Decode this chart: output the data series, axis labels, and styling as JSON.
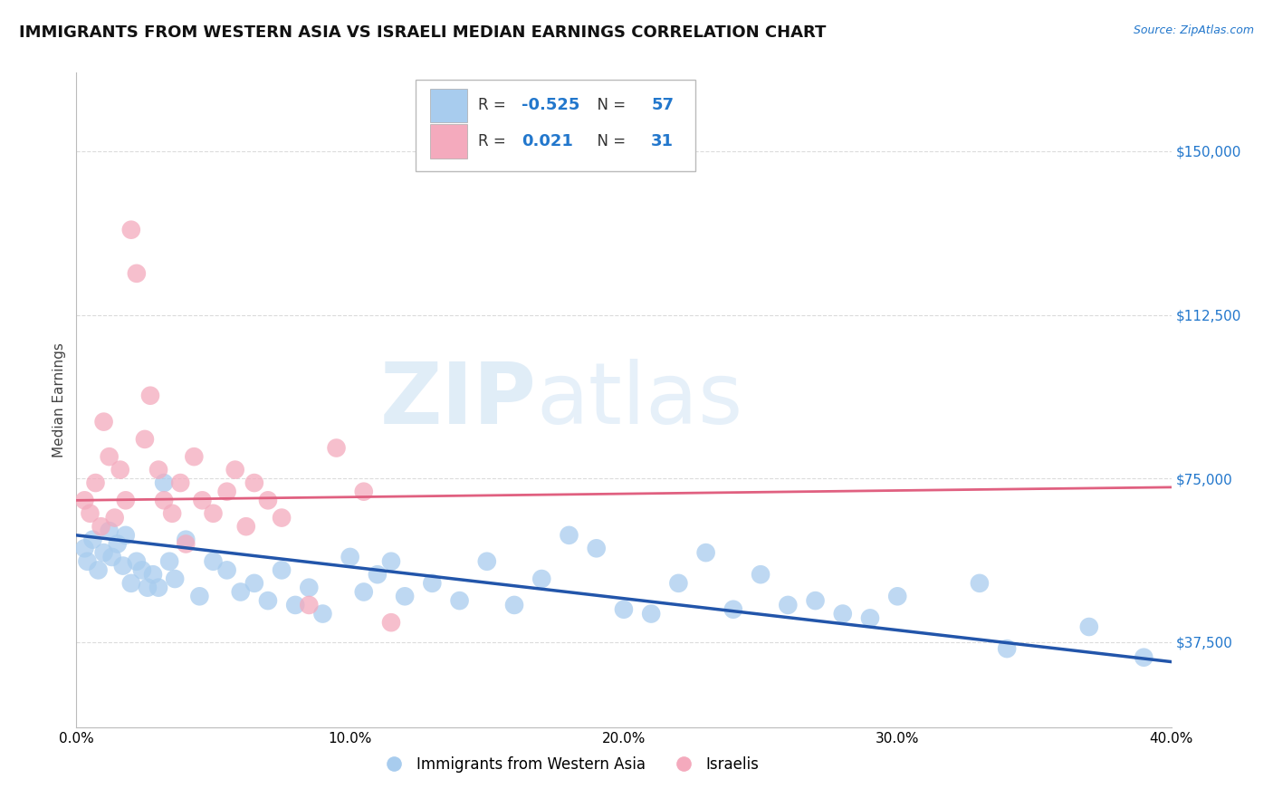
{
  "title": "IMMIGRANTS FROM WESTERN ASIA VS ISRAELI MEDIAN EARNINGS CORRELATION CHART",
  "source_text": "Source: ZipAtlas.com",
  "ylabel": "Median Earnings",
  "xlim": [
    0.0,
    0.4
  ],
  "ylim": [
    18000,
    168000
  ],
  "yticks": [
    37500,
    75000,
    112500,
    150000
  ],
  "xticks": [
    0.0,
    0.1,
    0.2,
    0.3,
    0.4
  ],
  "xticklabels": [
    "0.0%",
    "10.0%",
    "20.0%",
    "30.0%",
    "40.0%"
  ],
  "yticklabels": [
    "$37,500",
    "$75,000",
    "$112,500",
    "$150,000"
  ],
  "legend1_r": "-0.525",
  "legend1_n": "57",
  "legend2_r": "0.021",
  "legend2_n": "31",
  "blue_color": "#A8CCEE",
  "pink_color": "#F4AABD",
  "line_blue": "#2255AA",
  "line_pink": "#E06080",
  "watermark_zip": "ZIP",
  "watermark_atlas": "atlas",
  "blue_scatter": [
    [
      0.003,
      59000
    ],
    [
      0.004,
      56000
    ],
    [
      0.006,
      61000
    ],
    [
      0.008,
      54000
    ],
    [
      0.01,
      58000
    ],
    [
      0.012,
      63000
    ],
    [
      0.013,
      57000
    ],
    [
      0.015,
      60000
    ],
    [
      0.017,
      55000
    ],
    [
      0.018,
      62000
    ],
    [
      0.02,
      51000
    ],
    [
      0.022,
      56000
    ],
    [
      0.024,
      54000
    ],
    [
      0.026,
      50000
    ],
    [
      0.028,
      53000
    ],
    [
      0.03,
      50000
    ],
    [
      0.032,
      74000
    ],
    [
      0.034,
      56000
    ],
    [
      0.036,
      52000
    ],
    [
      0.04,
      61000
    ],
    [
      0.045,
      48000
    ],
    [
      0.05,
      56000
    ],
    [
      0.055,
      54000
    ],
    [
      0.06,
      49000
    ],
    [
      0.065,
      51000
    ],
    [
      0.07,
      47000
    ],
    [
      0.075,
      54000
    ],
    [
      0.08,
      46000
    ],
    [
      0.085,
      50000
    ],
    [
      0.09,
      44000
    ],
    [
      0.1,
      57000
    ],
    [
      0.105,
      49000
    ],
    [
      0.11,
      53000
    ],
    [
      0.115,
      56000
    ],
    [
      0.12,
      48000
    ],
    [
      0.13,
      51000
    ],
    [
      0.14,
      47000
    ],
    [
      0.15,
      56000
    ],
    [
      0.16,
      46000
    ],
    [
      0.17,
      52000
    ],
    [
      0.18,
      62000
    ],
    [
      0.19,
      59000
    ],
    [
      0.2,
      45000
    ],
    [
      0.21,
      44000
    ],
    [
      0.22,
      51000
    ],
    [
      0.23,
      58000
    ],
    [
      0.24,
      45000
    ],
    [
      0.25,
      53000
    ],
    [
      0.26,
      46000
    ],
    [
      0.27,
      47000
    ],
    [
      0.28,
      44000
    ],
    [
      0.29,
      43000
    ],
    [
      0.3,
      48000
    ],
    [
      0.33,
      51000
    ],
    [
      0.34,
      36000
    ],
    [
      0.37,
      41000
    ],
    [
      0.39,
      34000
    ]
  ],
  "pink_scatter": [
    [
      0.003,
      70000
    ],
    [
      0.005,
      67000
    ],
    [
      0.007,
      74000
    ],
    [
      0.009,
      64000
    ],
    [
      0.01,
      88000
    ],
    [
      0.012,
      80000
    ],
    [
      0.014,
      66000
    ],
    [
      0.016,
      77000
    ],
    [
      0.018,
      70000
    ],
    [
      0.02,
      132000
    ],
    [
      0.022,
      122000
    ],
    [
      0.025,
      84000
    ],
    [
      0.027,
      94000
    ],
    [
      0.03,
      77000
    ],
    [
      0.032,
      70000
    ],
    [
      0.035,
      67000
    ],
    [
      0.038,
      74000
    ],
    [
      0.04,
      60000
    ],
    [
      0.043,
      80000
    ],
    [
      0.046,
      70000
    ],
    [
      0.05,
      67000
    ],
    [
      0.055,
      72000
    ],
    [
      0.058,
      77000
    ],
    [
      0.062,
      64000
    ],
    [
      0.065,
      74000
    ],
    [
      0.07,
      70000
    ],
    [
      0.075,
      66000
    ],
    [
      0.085,
      46000
    ],
    [
      0.095,
      82000
    ],
    [
      0.105,
      72000
    ],
    [
      0.115,
      42000
    ]
  ],
  "dot_size": 220,
  "grid_color": "#CCCCCC",
  "title_fontsize": 13,
  "axis_label_fontsize": 11,
  "tick_fontsize": 11
}
